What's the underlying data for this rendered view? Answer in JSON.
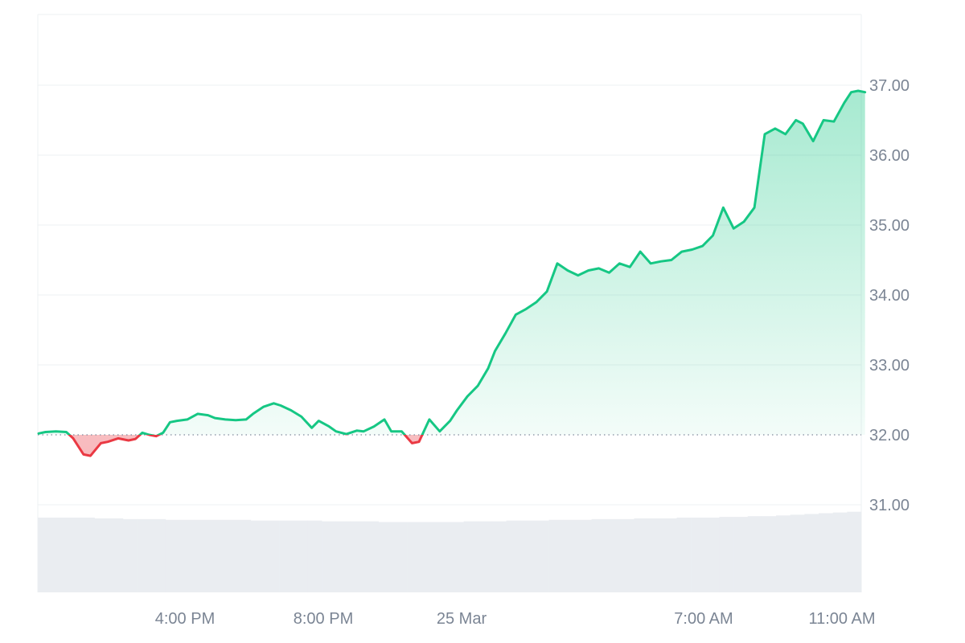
{
  "chart_data": {
    "type": "area",
    "title": "",
    "xlabel": "",
    "ylabel": "",
    "ylim": [
      30.0,
      38.0
    ],
    "yticks": [
      31.0,
      32.0,
      33.0,
      34.0,
      35.0,
      36.0,
      37.0
    ],
    "ytick_labels": [
      "31.00",
      "32.00",
      "33.00",
      "34.00",
      "35.00",
      "36.00",
      "37.00"
    ],
    "xticks": [
      {
        "label": "4:00 PM",
        "hour": 4
      },
      {
        "label": "8:00 PM",
        "hour": 8
      },
      {
        "label": "25 Mar",
        "hour": 12
      },
      {
        "label": "7:00 AM",
        "hour": 19
      },
      {
        "label": "11:00 AM",
        "hour": 23
      }
    ],
    "baseline": 32.0,
    "colors": {
      "up_line": "#16c784",
      "down_line": "#ea3943",
      "up_fill": "#16c784",
      "down_fill": "#ea3943",
      "grid": "#eef0f3",
      "baseline": "#808a9d",
      "volume": "#eaedf1"
    },
    "series": [
      {
        "hours": [
          0.0,
          0.2,
          0.5,
          0.8,
          1.0,
          1.3,
          1.5,
          1.8,
          2.0,
          2.3,
          2.6,
          2.8,
          3.0,
          3.2,
          3.4,
          3.6,
          3.8,
          4.0,
          4.3,
          4.6,
          4.9,
          5.1,
          5.4,
          5.7,
          6.0,
          6.2,
          6.5,
          6.8,
          7.0,
          7.3,
          7.6,
          7.9,
          8.1,
          8.4,
          8.6,
          8.9,
          9.2,
          9.4,
          9.7,
          10.0,
          10.2,
          10.5,
          10.8,
          11.0,
          11.3,
          11.6,
          11.9,
          12.1,
          12.4,
          12.7,
          13.0,
          13.2,
          13.5,
          13.8,
          14.1,
          14.4,
          14.7,
          15.0,
          15.3,
          15.6,
          15.9,
          16.2,
          16.5,
          16.8,
          17.1,
          17.4,
          17.7,
          18.0,
          18.3,
          18.6,
          18.9,
          19.2,
          19.5,
          19.8,
          20.1,
          20.4,
          20.7,
          21.0,
          21.3,
          21.6,
          21.9,
          22.1,
          22.4,
          22.7,
          23.0,
          23.3,
          23.5,
          23.7,
          23.9
        ],
        "values": [
          32.02,
          32.04,
          32.05,
          32.04,
          31.95,
          31.72,
          31.7,
          31.88,
          31.9,
          31.95,
          31.92,
          31.94,
          32.03,
          32.0,
          31.98,
          32.03,
          32.18,
          32.2,
          32.22,
          32.3,
          32.28,
          32.24,
          32.22,
          32.21,
          32.22,
          32.3,
          32.4,
          32.45,
          32.42,
          32.35,
          32.26,
          32.1,
          32.2,
          32.12,
          32.05,
          32.01,
          32.06,
          32.05,
          32.12,
          32.22,
          32.05,
          32.05,
          31.88,
          31.9,
          32.22,
          32.05,
          32.2,
          32.35,
          32.55,
          32.7,
          32.95,
          33.2,
          33.45,
          33.72,
          33.8,
          33.9,
          34.05,
          34.45,
          34.35,
          34.28,
          34.35,
          34.38,
          34.32,
          34.45,
          34.4,
          34.62,
          34.45,
          34.48,
          34.5,
          34.62,
          34.65,
          34.7,
          34.85,
          35.25,
          34.95,
          35.05,
          35.25,
          36.3,
          36.38,
          36.3,
          36.5,
          36.45,
          36.2,
          36.5,
          36.48,
          36.75,
          36.9,
          36.92,
          36.9
        ]
      }
    ],
    "volume": [
      0.82,
      0.82,
      0.82,
      0.82,
      0.81,
      0.81,
      0.8,
      0.8,
      0.8,
      0.79,
      0.79,
      0.79,
      0.79,
      0.79,
      0.79,
      0.78,
      0.78,
      0.78,
      0.78,
      0.78,
      0.77,
      0.77,
      0.77,
      0.77,
      0.76,
      0.76,
      0.76,
      0.76,
      0.76,
      0.76,
      0.77,
      0.77,
      0.77,
      0.78,
      0.78,
      0.78,
      0.79,
      0.79,
      0.79,
      0.8,
      0.8,
      0.8,
      0.81,
      0.81,
      0.81,
      0.82,
      0.82,
      0.82,
      0.83,
      0.83,
      0.84,
      0.84,
      0.85,
      0.86,
      0.87,
      0.88,
      0.89,
      0.9
    ]
  }
}
